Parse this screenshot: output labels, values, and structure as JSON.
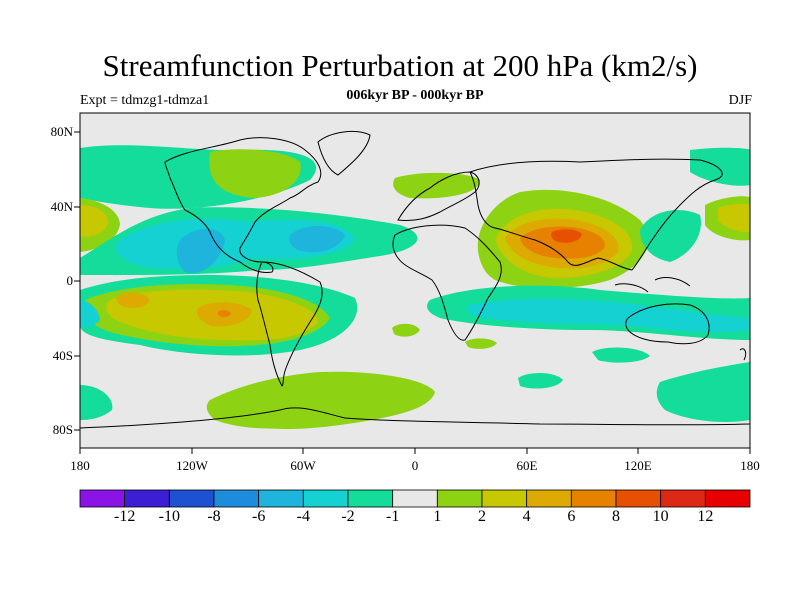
{
  "title": "Streamfunction Perturbation at 200 hPa (km2/s)",
  "subtitle": "006kyr BP - 000kyr BP",
  "experiment": "Expt = tdmzg1-tdmza1",
  "season": "DJF",
  "axes": {
    "lat_ticks": [
      "80N",
      "40N",
      "0",
      "40S",
      "80S"
    ],
    "lon_ticks": [
      "180",
      "120W",
      "60W",
      "0",
      "60E",
      "120E",
      "180"
    ]
  },
  "legend": {
    "labels": [
      "-12",
      "-10",
      "-8",
      "-6",
      "-4",
      "-2",
      "-1",
      "1",
      "2",
      "4",
      "6",
      "8",
      "10",
      "12"
    ],
    "colors": [
      "#8a14e6",
      "#3c1ed4",
      "#1e50d2",
      "#1e8cdc",
      "#1eb4dc",
      "#14d2d2",
      "#14dc9a",
      "#e8e8e8",
      "#8ed214",
      "#c8c800",
      "#dcaa00",
      "#e68200",
      "#e65000",
      "#dc2814",
      "#e60000"
    ]
  },
  "colors": {
    "background": "#e8e8e8",
    "coastline": "#000000"
  }
}
